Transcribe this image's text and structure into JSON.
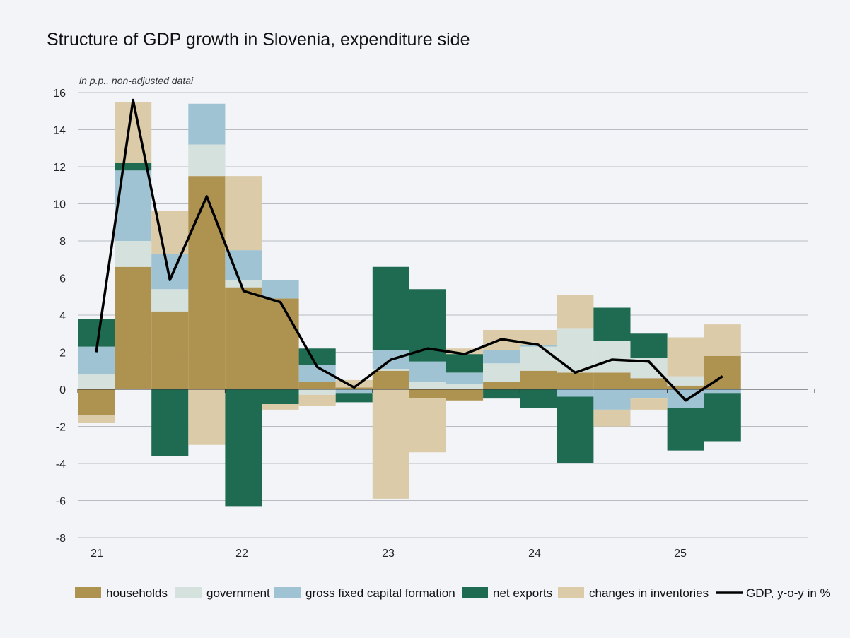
{
  "title": "Structure of GDP growth in Slovenia, expenditure side",
  "subtitle": "in p.p., non-adjusted datai",
  "colors": {
    "households": "#ae9250",
    "government": "#d5e1dd",
    "gross fixed capital formation": "#9fc3d2",
    "net exports": "#1f6b52",
    "changes in inventories": "#dbcba8",
    "GDP": "#000000"
  },
  "chart_data": {
    "type": "bar",
    "stacked": true,
    "quarters": [
      "21Q1",
      "21Q2",
      "21Q3",
      "21Q4",
      "22Q1",
      "22Q2",
      "22Q3",
      "22Q4",
      "23Q1",
      "23Q2",
      "23Q3",
      "23Q4",
      "24Q1",
      "24Q2",
      "24Q3",
      "24Q4",
      "25Q1",
      "25Q2"
    ],
    "x_tick_labels": [
      "21",
      "22",
      "23",
      "24",
      "25"
    ],
    "y_ticks": [
      "16",
      "14",
      "12",
      "10",
      "8",
      "6",
      "4",
      "2",
      "0",
      "-2",
      "-4",
      "-6",
      "-8"
    ],
    "ylim": [
      -8,
      16
    ],
    "grid": true,
    "legend_position": "bottom",
    "series": [
      {
        "name": "households",
        "values": [
          -1.4,
          6.6,
          4.2,
          11.5,
          5.5,
          4.9,
          0.4,
          0.1,
          1.0,
          -0.5,
          -0.6,
          0.4,
          1.0,
          0.9,
          0.9,
          0.6,
          0.2,
          1.8
        ]
      },
      {
        "name": "government",
        "values": [
          0.8,
          1.4,
          1.2,
          1.7,
          0.4,
          0.0,
          -0.3,
          0.0,
          0.1,
          0.4,
          0.3,
          1.0,
          1.3,
          2.4,
          1.7,
          1.1,
          0.5,
          0.0
        ]
      },
      {
        "name": "gross fixed capital formation",
        "values": [
          1.5,
          3.8,
          1.9,
          2.2,
          1.6,
          1.0,
          0.9,
          -0.2,
          1.0,
          1.1,
          0.6,
          0.7,
          0.1,
          -0.4,
          -1.1,
          -0.5,
          -1.0,
          -0.2
        ]
      },
      {
        "name": "net exports",
        "values": [
          1.5,
          0.4,
          -3.6,
          0.0,
          -6.3,
          -0.8,
          0.9,
          -0.5,
          4.5,
          3.9,
          1.0,
          -0.5,
          -1.0,
          -3.6,
          1.8,
          1.3,
          -2.3,
          -2.6
        ]
      },
      {
        "name": "changes in inventories",
        "values": [
          -0.4,
          3.3,
          2.3,
          -3.0,
          4.0,
          -0.3,
          -0.6,
          0.4,
          -5.9,
          -2.9,
          0.3,
          1.1,
          0.8,
          1.8,
          -0.9,
          -0.6,
          2.1,
          1.7
        ]
      }
    ],
    "line": {
      "name": "GDP, y-o-y in %",
      "values": [
        2.0,
        15.6,
        5.9,
        10.4,
        5.3,
        4.7,
        1.2,
        0.1,
        1.6,
        2.2,
        1.9,
        2.7,
        2.4,
        0.9,
        1.6,
        1.5,
        -0.6,
        0.7
      ]
    }
  }
}
